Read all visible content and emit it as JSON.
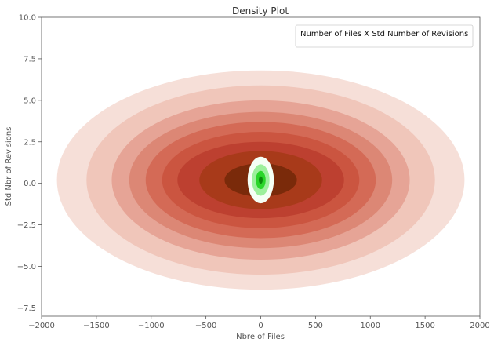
{
  "chart_data": {
    "type": "density",
    "title": "Density Plot",
    "xlabel": "Nbre of Files",
    "ylabel": "Std Nbr of Revisions",
    "xlim": [
      -2000,
      2000
    ],
    "ylim": [
      -8,
      10
    ],
    "xticks": [
      -2000,
      -1500,
      -1000,
      -500,
      0,
      500,
      1000,
      1500,
      2000
    ],
    "xtick_labels": [
      "−2000",
      "−1500",
      "−1000",
      "−500",
      "0",
      "500",
      "1000",
      "1500",
      "2000"
    ],
    "yticks": [
      -7.5,
      -5.0,
      -2.5,
      0.0,
      2.5,
      5.0,
      7.5,
      10.0
    ],
    "ytick_labels": [
      "−7.5",
      "−5.0",
      "−2.5",
      "0.0",
      "2.5",
      "5.0",
      "7.5",
      "10.0"
    ],
    "grid": false,
    "legend": {
      "position": "top-right",
      "entries": [
        "Number of Files X Std Number of Revisions"
      ]
    },
    "series": [
      {
        "colormap": "reds",
        "center": [
          0,
          0.2
        ],
        "levels": [
          {
            "rx": 1860,
            "ry": 6.6,
            "color": "#f6dfd8"
          },
          {
            "rx": 1590,
            "ry": 5.7,
            "color": "#f0c6ba"
          },
          {
            "rx": 1360,
            "ry": 4.8,
            "color": "#e6a496"
          },
          {
            "rx": 1200,
            "ry": 4.1,
            "color": "#dc8775"
          },
          {
            "rx": 1050,
            "ry": 3.5,
            "color": "#d46a56"
          },
          {
            "rx": 900,
            "ry": 2.9,
            "color": "#cb5540"
          },
          {
            "rx": 760,
            "ry": 2.3,
            "color": "#bd4030"
          },
          {
            "rx": 560,
            "ry": 1.75,
            "color": "#a83a1a"
          },
          {
            "rx": 330,
            "ry": 1.0,
            "color": "#7a2a0a"
          }
        ]
      },
      {
        "colormap": "greens",
        "center": [
          0,
          0.2
        ],
        "levels": [
          {
            "rx": 120,
            "ry": 1.4,
            "color": "#f5fff5"
          },
          {
            "rx": 80,
            "ry": 0.95,
            "color": "#9cf09c"
          },
          {
            "rx": 45,
            "ry": 0.55,
            "color": "#2ad62a"
          },
          {
            "rx": 18,
            "ry": 0.22,
            "color": "#0a8a0a"
          }
        ]
      }
    ]
  }
}
